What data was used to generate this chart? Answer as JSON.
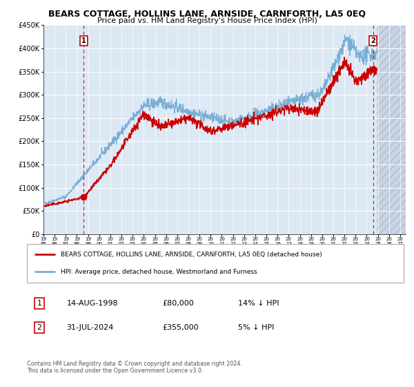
{
  "title": "BEARS COTTAGE, HOLLINS LANE, ARNSIDE, CARNFORTH, LA5 0EQ",
  "subtitle": "Price paid vs. HM Land Registry's House Price Index (HPI)",
  "bg_color": "#dce9f5",
  "y_min": 0,
  "y_max": 450000,
  "x_min": 1995.0,
  "x_max": 2027.5,
  "transaction1_date": 1998.62,
  "transaction1_price": 80000,
  "transaction2_date": 2024.58,
  "transaction2_price": 355000,
  "legend_line1": "BEARS COTTAGE, HOLLINS LANE, ARNSIDE, CARNFORTH, LA5 0EQ (detached house)",
  "legend_line2": "HPI: Average price, detached house, Westmorland and Furness",
  "table_row1": [
    "1",
    "14-AUG-1998",
    "£80,000",
    "14% ↓ HPI"
  ],
  "table_row2": [
    "2",
    "31-JUL-2024",
    "£355,000",
    "5% ↓ HPI"
  ],
  "footer": "Contains HM Land Registry data © Crown copyright and database right 2024.\nThis data is licensed under the Open Government Licence v3.0.",
  "red_line_color": "#cc0000",
  "blue_line_color": "#7aadd4",
  "grid_color": "#ffffff",
  "future_start": 2024.92
}
